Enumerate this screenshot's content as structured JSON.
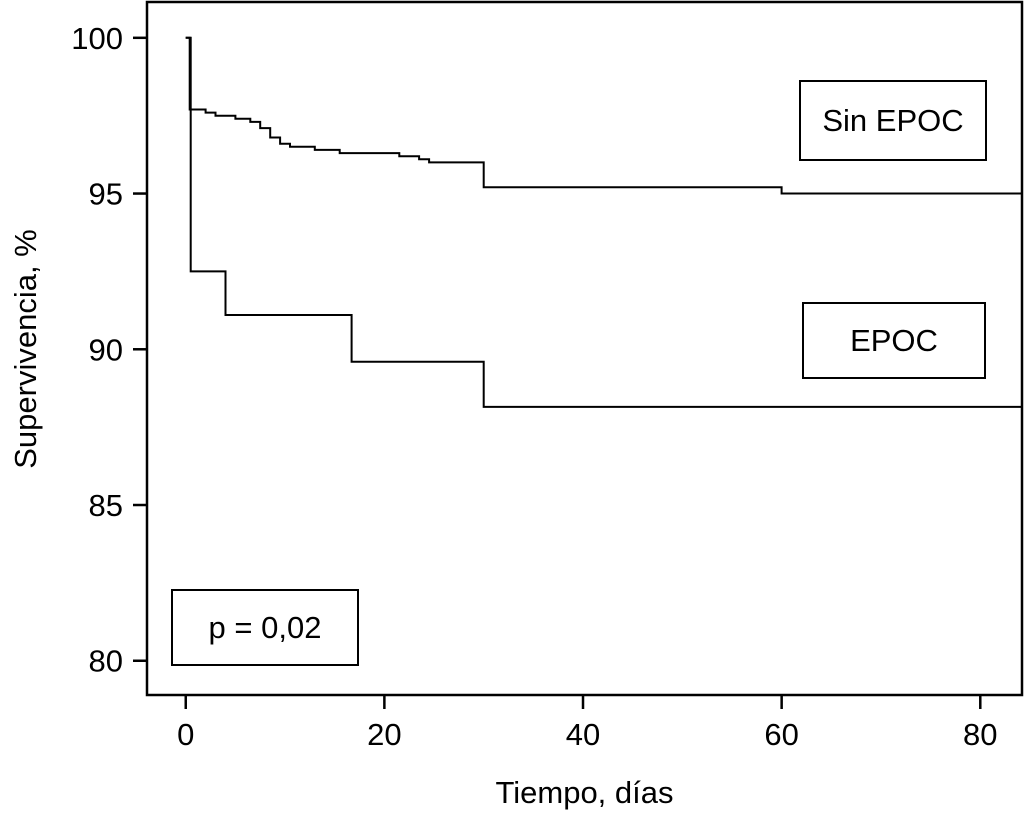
{
  "chart_data": {
    "type": "line",
    "subtype": "kaplan-meier-step",
    "title": "",
    "xlabel": "Tiempo, días",
    "ylabel": "Supervivencia, %",
    "xlim": [
      -3.9,
      84.2
    ],
    "ylim": [
      78.9,
      101.15
    ],
    "xticks": [
      0,
      20,
      40,
      60,
      80
    ],
    "yticks": [
      80,
      85,
      90,
      95,
      100
    ],
    "grid": false,
    "legend_position": "boxed-annotations-on-plot",
    "line_color": "#000000",
    "labels": {
      "sin_epoc": "Sin EPOC",
      "epoc": "EPOC",
      "p_value": "p = 0,02"
    },
    "series": [
      {
        "id": "sin-epoc",
        "name": "Sin EPOC",
        "points": [
          [
            0,
            100
          ],
          [
            0.4,
            97.7
          ],
          [
            2,
            97.6
          ],
          [
            3,
            97.5
          ],
          [
            5,
            97.4
          ],
          [
            6.5,
            97.3
          ],
          [
            7.5,
            97.1
          ],
          [
            8.5,
            96.8
          ],
          [
            9.5,
            96.6
          ],
          [
            10.5,
            96.5
          ],
          [
            13,
            96.4
          ],
          [
            15.5,
            96.3
          ],
          [
            21.5,
            96.2
          ],
          [
            23.5,
            96.1
          ],
          [
            24.5,
            96.0
          ],
          [
            30,
            95.2
          ],
          [
            60,
            95.0
          ],
          [
            84.2,
            95.0
          ]
        ]
      },
      {
        "id": "epoc",
        "name": "EPOC",
        "points": [
          [
            0,
            100
          ],
          [
            0.5,
            92.5
          ],
          [
            4,
            91.1
          ],
          [
            16.7,
            89.6
          ],
          [
            30,
            88.15
          ],
          [
            84.2,
            88.15
          ]
        ]
      }
    ]
  }
}
